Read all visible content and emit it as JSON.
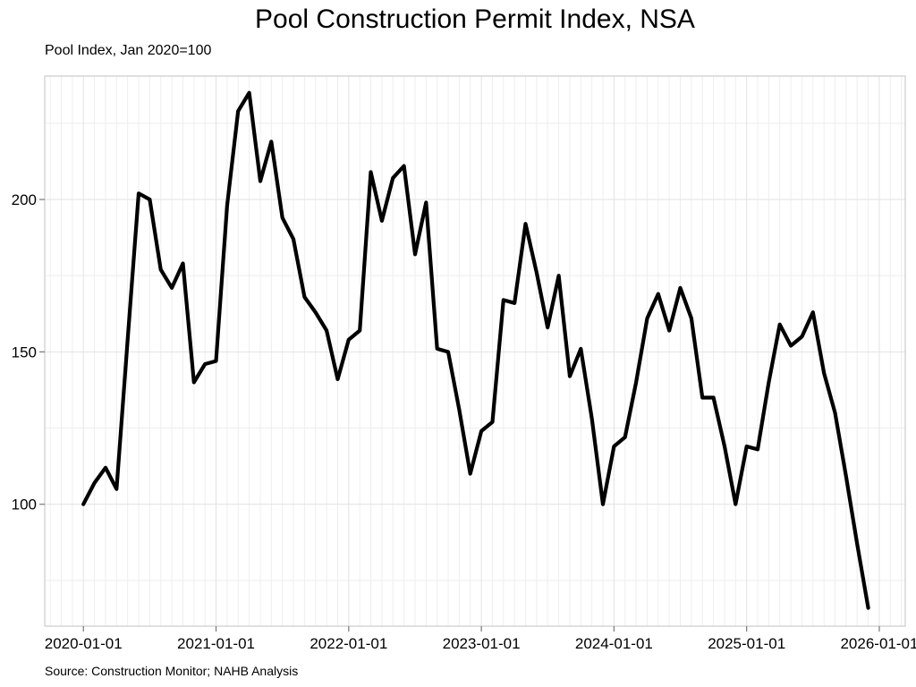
{
  "title": "Pool Construction Permit Index, NSA",
  "subtitle": "Pool Index, Jan 2020=100",
  "source": "Source: Construction Monitor; NAHB Analysis",
  "chart_data": {
    "type": "line",
    "title": "Pool Construction Permit Index, NSA",
    "subtitle": "Pool Index, Jan 2020=100",
    "caption": "Source: Construction Monitor; NAHB Analysis",
    "series_name": "Pool Construction Permit Index (NSA, Jan 2020=100)",
    "frequency": "monthly",
    "x_start": "2020-01-01",
    "x_end": "2025-12-01",
    "values": [
      100,
      107,
      112,
      105,
      154,
      202,
      200,
      177,
      171,
      179,
      140,
      146,
      147,
      198,
      229,
      235,
      206,
      219,
      194,
      187,
      168,
      163,
      157,
      141,
      154,
      157,
      209,
      193,
      207,
      211,
      182,
      199,
      151,
      150,
      131,
      110,
      124,
      127,
      167,
      166,
      192,
      176,
      158,
      175,
      142,
      151,
      128,
      100,
      119,
      122,
      140,
      161,
      169,
      157,
      171,
      161,
      135,
      135,
      119,
      100,
      119,
      118,
      140,
      159,
      152,
      155,
      163,
      143,
      130,
      109,
      87,
      66
    ],
    "x_tick_labels": [
      "2020-01-01",
      "2021-01-01",
      "2022-01-01",
      "2023-01-01",
      "2024-01-01",
      "2025-01-01",
      "2026-01-01"
    ],
    "x_tick_month_index": [
      0,
      12,
      24,
      36,
      48,
      60,
      72
    ],
    "y_ticks": [
      100,
      150,
      200
    ],
    "y_tick_labels": [
      "100",
      "150",
      "200"
    ],
    "y_minor_gridlines": [
      75,
      125,
      175,
      225
    ],
    "ylim": [
      60,
      240.5
    ],
    "x_range_months": [
      -3.5,
      74.35
    ],
    "grid": true,
    "legend": "none",
    "colors": {
      "line": "#000000",
      "grid_major": "#e2e2e2",
      "grid_minor": "#eeeeee",
      "panel_border": "#cccccc",
      "tick": "#777777",
      "text": "#000000"
    }
  }
}
